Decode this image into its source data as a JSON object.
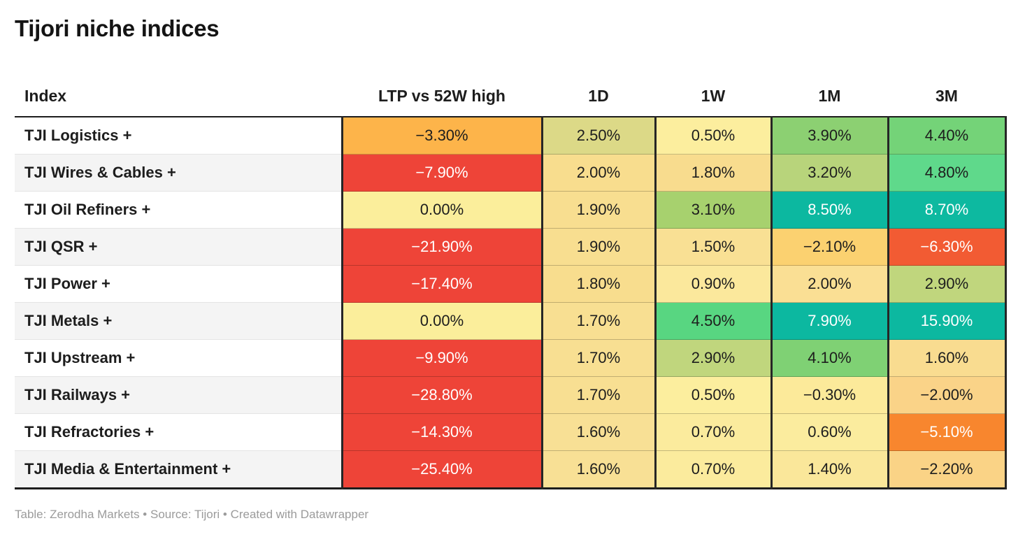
{
  "title": "Tijori niche indices",
  "footer": "Table: Zerodha Markets • Source: Tijori • Created with Datawrapper",
  "columns": {
    "index": "Index",
    "ltp": "LTP vs 52W high",
    "d1": "1D",
    "w1": "1W",
    "m1": "1M",
    "m3": "3M"
  },
  "colors": {
    "dark_text": "#1d1d1d",
    "light_text": "#ffffff",
    "strong_red": "#ee4438",
    "orange": "#fdb44a",
    "pale_yellow": "#fbee9b",
    "teal": "#0cb8a0",
    "table_rule": "#1d1d1d",
    "alt_row": "#f4f4f4",
    "footer_gray": "#9b9b9b"
  },
  "table": {
    "rows": [
      {
        "index": "TJI Logistics +",
        "cells": [
          {
            "text": "−3.30%",
            "bg": "#fdb44a",
            "fg": "#1d1d1d"
          },
          {
            "text": "2.50%",
            "bg": "#dcd987",
            "fg": "#1d1d1d"
          },
          {
            "text": "0.50%",
            "bg": "#fcee9e",
            "fg": "#1d1d1d"
          },
          {
            "text": "3.90%",
            "bg": "#8cd072",
            "fg": "#1d1d1d"
          },
          {
            "text": "4.40%",
            "bg": "#74d378",
            "fg": "#1d1d1d"
          }
        ]
      },
      {
        "index": "TJI Wires & Cables +",
        "cells": [
          {
            "text": "−7.90%",
            "bg": "#ee4438",
            "fg": "#ffffff"
          },
          {
            "text": "2.00%",
            "bg": "#f8dd8e",
            "fg": "#1d1d1d"
          },
          {
            "text": "1.80%",
            "bg": "#f8dc8e",
            "fg": "#1d1d1d"
          },
          {
            "text": "3.20%",
            "bg": "#b8d47b",
            "fg": "#1d1d1d"
          },
          {
            "text": "4.80%",
            "bg": "#5fd98b",
            "fg": "#1d1d1d"
          }
        ]
      },
      {
        "index": "TJI Oil Refiners +",
        "cells": [
          {
            "text": "0.00%",
            "bg": "#fbee9b",
            "fg": "#1d1d1d"
          },
          {
            "text": "1.90%",
            "bg": "#f8de90",
            "fg": "#1d1d1d"
          },
          {
            "text": "3.10%",
            "bg": "#a7d16e",
            "fg": "#1d1d1d"
          },
          {
            "text": "8.50%",
            "bg": "#0cb8a0",
            "fg": "#ffffff"
          },
          {
            "text": "8.70%",
            "bg": "#0db9a0",
            "fg": "#ffffff"
          }
        ]
      },
      {
        "index": "TJI QSR +",
        "cells": [
          {
            "text": "−21.90%",
            "bg": "#ee4438",
            "fg": "#ffffff"
          },
          {
            "text": "1.90%",
            "bg": "#f8de90",
            "fg": "#1d1d1d"
          },
          {
            "text": "1.50%",
            "bg": "#f9e094",
            "fg": "#1d1d1d"
          },
          {
            "text": "−2.10%",
            "bg": "#fbd170",
            "fg": "#1d1d1d"
          },
          {
            "text": "−6.30%",
            "bg": "#f25b33",
            "fg": "#ffffff"
          }
        ]
      },
      {
        "index": "TJI Power +",
        "cells": [
          {
            "text": "−17.40%",
            "bg": "#ee4438",
            "fg": "#ffffff"
          },
          {
            "text": "1.80%",
            "bg": "#f8dd8e",
            "fg": "#1d1d1d"
          },
          {
            "text": "0.90%",
            "bg": "#fbe89c",
            "fg": "#1d1d1d"
          },
          {
            "text": "2.00%",
            "bg": "#fadf94",
            "fg": "#1d1d1d"
          },
          {
            "text": "2.90%",
            "bg": "#c0d67d",
            "fg": "#1d1d1d"
          }
        ]
      },
      {
        "index": "TJI Metals +",
        "cells": [
          {
            "text": "0.00%",
            "bg": "#fbee9b",
            "fg": "#1d1d1d"
          },
          {
            "text": "1.70%",
            "bg": "#f8df92",
            "fg": "#1d1d1d"
          },
          {
            "text": "4.50%",
            "bg": "#58d681",
            "fg": "#1d1d1d"
          },
          {
            "text": "7.90%",
            "bg": "#0cb8a0",
            "fg": "#ffffff"
          },
          {
            "text": "15.90%",
            "bg": "#0cb8a0",
            "fg": "#ffffff"
          }
        ]
      },
      {
        "index": "TJI Upstream +",
        "cells": [
          {
            "text": "−9.90%",
            "bg": "#ee4438",
            "fg": "#ffffff"
          },
          {
            "text": "1.70%",
            "bg": "#f8df92",
            "fg": "#1d1d1d"
          },
          {
            "text": "2.90%",
            "bg": "#c0d67d",
            "fg": "#1d1d1d"
          },
          {
            "text": "4.10%",
            "bg": "#7fd174",
            "fg": "#1d1d1d"
          },
          {
            "text": "1.60%",
            "bg": "#f9dc90",
            "fg": "#1d1d1d"
          }
        ]
      },
      {
        "index": "TJI Railways +",
        "cells": [
          {
            "text": "−28.80%",
            "bg": "#ee4438",
            "fg": "#ffffff"
          },
          {
            "text": "1.70%",
            "bg": "#f8df92",
            "fg": "#1d1d1d"
          },
          {
            "text": "0.50%",
            "bg": "#fcee9e",
            "fg": "#1d1d1d"
          },
          {
            "text": "−0.30%",
            "bg": "#fcea9a",
            "fg": "#1d1d1d"
          },
          {
            "text": "−2.00%",
            "bg": "#fad388",
            "fg": "#1d1d1d"
          }
        ]
      },
      {
        "index": "TJI Refractories +",
        "cells": [
          {
            "text": "−14.30%",
            "bg": "#ee4438",
            "fg": "#ffffff"
          },
          {
            "text": "1.60%",
            "bg": "#f8e095",
            "fg": "#1d1d1d"
          },
          {
            "text": "0.70%",
            "bg": "#fbeb9d",
            "fg": "#1d1d1d"
          },
          {
            "text": "0.60%",
            "bg": "#fbec9e",
            "fg": "#1d1d1d"
          },
          {
            "text": "−5.10%",
            "bg": "#f8862e",
            "fg": "#ffffff"
          }
        ]
      },
      {
        "index": "TJI Media & Entertainment +",
        "cells": [
          {
            "text": "−25.40%",
            "bg": "#ee4438",
            "fg": "#ffffff"
          },
          {
            "text": "1.60%",
            "bg": "#f8e095",
            "fg": "#1d1d1d"
          },
          {
            "text": "0.70%",
            "bg": "#fbeb9d",
            "fg": "#1d1d1d"
          },
          {
            "text": "1.40%",
            "bg": "#fae79a",
            "fg": "#1d1d1d"
          },
          {
            "text": "−2.20%",
            "bg": "#fad386",
            "fg": "#1d1d1d"
          }
        ]
      }
    ]
  },
  "chart_data": {
    "type": "table",
    "title": "Tijori niche indices",
    "columns": [
      "Index",
      "LTP vs 52W high",
      "1D",
      "1W",
      "1M",
      "3M"
    ],
    "rows": [
      [
        "TJI Logistics +",
        -3.3,
        2.5,
        0.5,
        3.9,
        4.4
      ],
      [
        "TJI Wires & Cables +",
        -7.9,
        2.0,
        1.8,
        3.2,
        4.8
      ],
      [
        "TJI Oil Refiners +",
        0.0,
        1.9,
        3.1,
        8.5,
        8.7
      ],
      [
        "TJI QSR +",
        -21.9,
        1.9,
        1.5,
        -2.1,
        -6.3
      ],
      [
        "TJI Power +",
        -17.4,
        1.8,
        0.9,
        2.0,
        2.9
      ],
      [
        "TJI Metals +",
        0.0,
        1.7,
        4.5,
        7.9,
        15.9
      ],
      [
        "TJI Upstream +",
        -9.9,
        1.7,
        2.9,
        4.1,
        1.6
      ],
      [
        "TJI Railways +",
        -28.8,
        1.7,
        0.5,
        -0.3,
        -2.0
      ],
      [
        "TJI Refractories +",
        -14.3,
        1.6,
        0.7,
        0.6,
        -5.1
      ],
      [
        "TJI Media & Entertainment +",
        -25.4,
        1.6,
        0.7,
        1.4,
        -2.2
      ]
    ],
    "value_format": "percent with two decimals",
    "style": "heatmap cells, diverging red → yellow → green/teal scale",
    "footer": "Table: Zerodha Markets • Source: Tijori • Created with Datawrapper"
  }
}
